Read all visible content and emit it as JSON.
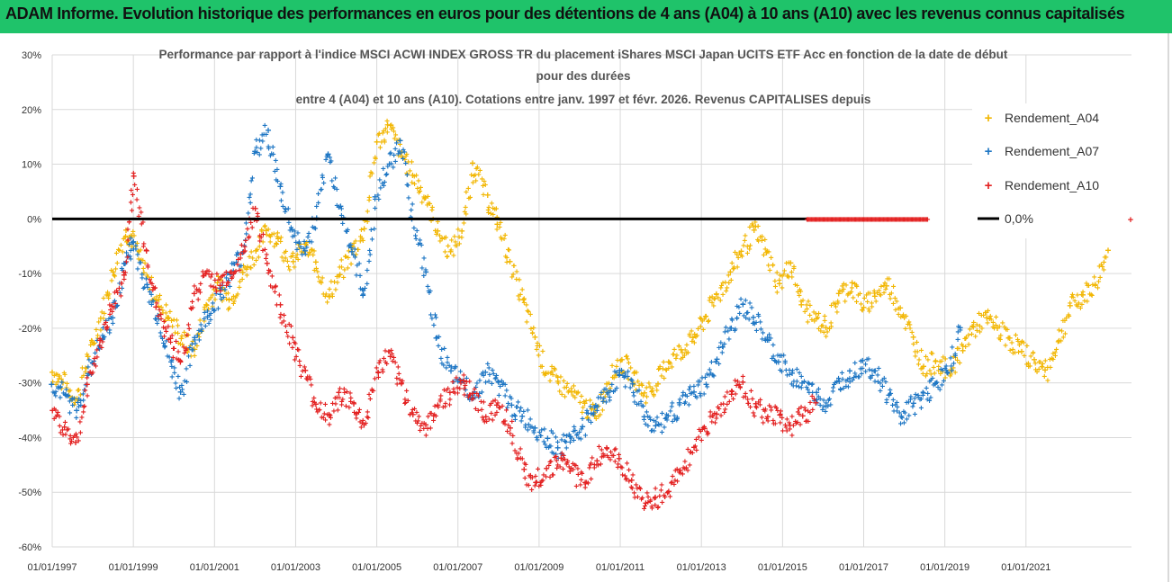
{
  "banner": {
    "text": "ADAM Informe. Evolution historique des performances en euros pour des détentions de 4 ans (A04) à 10 ans (A10) avec les revenus connus capitalisés"
  },
  "chart_data": {
    "type": "scatter",
    "title_lines": [
      "Performance par rapport à l'indice MSCI ACWI INDEX GROSS TR  du placement iShares MSCI Japan UCITS ETF Acc en fonction de la date de début",
      "pour des durées",
      "entre 4 (A04) et 10 ans (A10). Cotations entre janv. 1997 et févr. 2026. Revenus CAPITALISES depuis"
    ],
    "xlabel": "",
    "ylabel": "",
    "x_range": [
      1997.0,
      2023.6
    ],
    "ylim": [
      -60,
      30
    ],
    "y_ticks": [
      30,
      20,
      10,
      0,
      -10,
      -20,
      -30,
      -40,
      -50,
      -60
    ],
    "y_tick_labels": [
      "30%",
      "20%",
      "10%",
      "0%",
      "-10%",
      "-20%",
      "-30%",
      "-40%",
      "-50%",
      "-60%"
    ],
    "x_ticks": [
      1997,
      1999,
      2001,
      2003,
      2005,
      2007,
      2009,
      2011,
      2013,
      2015,
      2017,
      2019,
      2021
    ],
    "x_tick_labels": [
      "01/01/1997",
      "01/01/1999",
      "01/01/2001",
      "01/01/2003",
      "01/01/2005",
      "01/01/2007",
      "01/01/2009",
      "01/01/2011",
      "01/01/2013",
      "01/01/2015",
      "01/01/2017",
      "01/01/2019",
      "01/01/2021"
    ],
    "legend_position": "right",
    "series": [
      {
        "name": "Rendement_A04",
        "color": "#f2b705",
        "x": [
          1997.0,
          1997.3,
          1997.6,
          1997.9,
          1998.2,
          1998.5,
          1998.8,
          1999.0,
          1999.3,
          1999.6,
          1999.9,
          2000.2,
          2000.5,
          2000.8,
          2001.1,
          2001.4,
          2001.7,
          2002.0,
          2002.3,
          2002.6,
          2002.9,
          2003.2,
          2003.5,
          2003.8,
          2004.1,
          2004.4,
          2004.7,
          2005.0,
          2005.3,
          2005.6,
          2005.9,
          2006.2,
          2006.5,
          2006.8,
          2007.1,
          2007.4,
          2007.7,
          2008.0,
          2008.3,
          2008.6,
          2008.9,
          2009.2,
          2009.5,
          2009.8,
          2010.1,
          2010.4,
          2010.7,
          2011.0,
          2011.3,
          2011.6,
          2011.9,
          2012.2,
          2012.5,
          2012.8,
          2013.1,
          2013.4,
          2013.7,
          2014.0,
          2014.3,
          2014.6,
          2014.9,
          2015.2,
          2015.5,
          2015.8,
          2016.1,
          2016.4,
          2016.7,
          2017.0,
          2017.3,
          2017.6,
          2017.9,
          2018.2,
          2018.5,
          2018.8,
          2019.1,
          2019.4,
          2019.7,
          2020.0,
          2020.3,
          2020.6,
          2020.9,
          2021.2,
          2021.5,
          2021.8,
          2022.1,
          2022.4,
          2022.7,
          2023.0
        ],
        "y": [
          -28,
          -30,
          -33,
          -25,
          -18,
          -10,
          -2,
          -4,
          -10,
          -15,
          -18,
          -22,
          -24,
          -16,
          -12,
          -15,
          -10,
          -6,
          -2,
          -4,
          -8,
          -5,
          -8,
          -14,
          -10,
          -6,
          -2,
          14,
          17,
          12,
          8,
          4,
          -2,
          -6,
          -2,
          10,
          4,
          -1,
          -8,
          -15,
          -22,
          -28,
          -30,
          -32,
          -34,
          -36,
          -30,
          -26,
          -28,
          -32,
          -30,
          -26,
          -24,
          -22,
          -18,
          -14,
          -10,
          -6,
          -2,
          -6,
          -12,
          -8,
          -16,
          -18,
          -20,
          -14,
          -12,
          -16,
          -14,
          -12,
          -16,
          -22,
          -27,
          -26,
          -28,
          -24,
          -20,
          -18,
          -20,
          -22,
          -24,
          -26,
          -28,
          -22,
          -16,
          -14,
          -12,
          -6
        ]
      },
      {
        "name": "Rendement_A07",
        "color": "#1f77c4",
        "x": [
          1997.0,
          1997.3,
          1997.6,
          1997.9,
          1998.2,
          1998.5,
          1998.8,
          1999.0,
          1999.3,
          1999.6,
          1999.9,
          2000.2,
          2000.5,
          2000.8,
          2001.1,
          2001.4,
          2001.7,
          2002.0,
          2002.3,
          2002.6,
          2002.9,
          2003.2,
          2003.5,
          2003.8,
          2004.1,
          2004.4,
          2004.7,
          2005.0,
          2005.3,
          2005.6,
          2005.9,
          2006.2,
          2006.5,
          2006.8,
          2007.1,
          2007.4,
          2007.7,
          2008.0,
          2008.3,
          2008.6,
          2008.9,
          2009.2,
          2009.5,
          2009.8,
          2010.1,
          2010.4,
          2010.7,
          2011.0,
          2011.3,
          2011.6,
          2011.9,
          2012.2,
          2012.5,
          2012.8,
          2013.1,
          2013.4,
          2013.7,
          2014.0,
          2014.3,
          2014.6,
          2014.9,
          2015.2,
          2015.5,
          2015.8,
          2016.1,
          2016.4,
          2016.7,
          2017.0,
          2017.3,
          2017.6,
          2017.9,
          2018.2,
          2018.5,
          2018.8,
          2019.1,
          2019.4
        ],
        "y": [
          -30,
          -32,
          -35,
          -28,
          -22,
          -18,
          -8,
          -4,
          -12,
          -18,
          -26,
          -32,
          -22,
          -18,
          -14,
          -10,
          -6,
          12,
          16,
          6,
          -2,
          -6,
          0,
          12,
          2,
          -6,
          -14,
          4,
          10,
          14,
          0,
          -10,
          -22,
          -28,
          -30,
          -32,
          -28,
          -30,
          -34,
          -36,
          -38,
          -40,
          -42,
          -40,
          -38,
          -34,
          -32,
          -28,
          -30,
          -36,
          -38,
          -36,
          -34,
          -32,
          -30,
          -26,
          -20,
          -16,
          -18,
          -22,
          -26,
          -28,
          -30,
          -32,
          -34,
          -30,
          -28,
          -26,
          -28,
          -32,
          -36,
          -34,
          -32,
          -30,
          -28,
          -20
        ]
      },
      {
        "name": "Rendement_A10",
        "color": "#e32222",
        "x": [
          1997.0,
          1997.3,
          1997.6,
          1997.9,
          1998.2,
          1998.5,
          1998.8,
          1999.0,
          1999.3,
          1999.6,
          1999.9,
          2000.2,
          2000.5,
          2000.8,
          2001.1,
          2001.4,
          2001.7,
          2002.0,
          2002.3,
          2002.6,
          2002.9,
          2003.2,
          2003.5,
          2003.8,
          2004.1,
          2004.4,
          2004.7,
          2005.0,
          2005.3,
          2005.6,
          2005.9,
          2006.2,
          2006.5,
          2006.8,
          2007.1,
          2007.4,
          2007.7,
          2008.0,
          2008.3,
          2008.6,
          2008.9,
          2009.2,
          2009.5,
          2009.8,
          2010.1,
          2010.4,
          2010.7,
          2011.0,
          2011.3,
          2011.6,
          2011.9,
          2012.2,
          2012.5,
          2012.8,
          2013.1,
          2013.4,
          2013.7,
          2014.0,
          2014.3,
          2014.6,
          2014.9,
          2015.2,
          2015.5,
          2015.8
        ],
        "y": [
          -35,
          -38,
          -41,
          -30,
          -22,
          -16,
          -10,
          8,
          -6,
          -16,
          -22,
          -26,
          -14,
          -10,
          -12,
          -10,
          -6,
          2,
          -8,
          -16,
          -22,
          -28,
          -34,
          -36,
          -32,
          -34,
          -38,
          -28,
          -25,
          -30,
          -36,
          -38,
          -34,
          -32,
          -30,
          -32,
          -36,
          -34,
          -38,
          -46,
          -48,
          -46,
          -44,
          -46,
          -48,
          -44,
          -42,
          -44,
          -48,
          -52,
          -51,
          -50,
          -46,
          -42,
          -38,
          -36,
          -32,
          -30,
          -34,
          -36,
          -36,
          -38,
          -36,
          -34
        ]
      },
      {
        "name": "0,0%",
        "color": "#000000",
        "x": [
          1997.0,
          2015.6
        ],
        "y": [
          0,
          0
        ]
      }
    ],
    "zero_marker_band": {
      "x_start": 2015.6,
      "x_end": 2018.6,
      "y": 0,
      "color": "#e32222"
    }
  }
}
